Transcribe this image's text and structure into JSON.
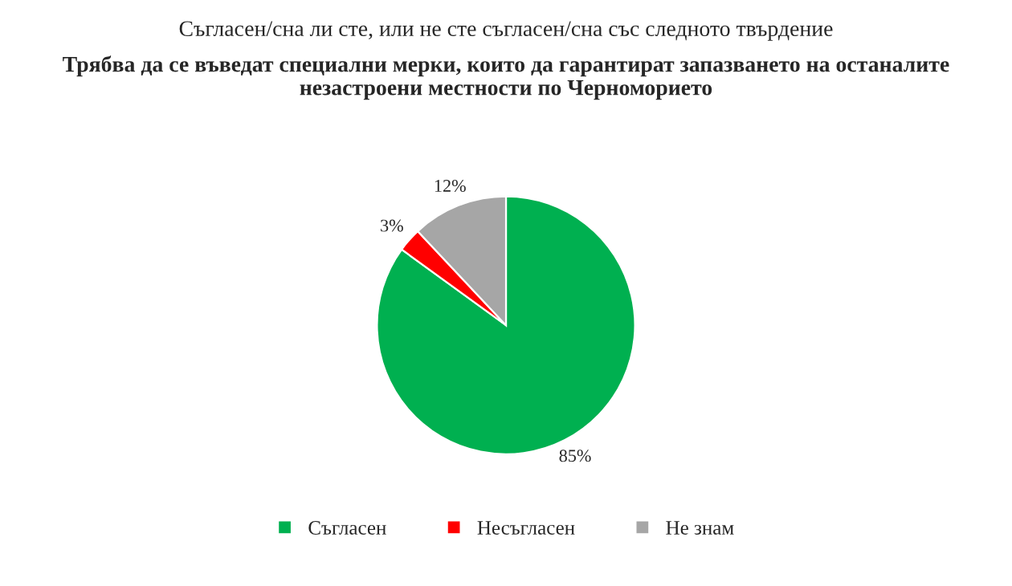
{
  "chart_data": {
    "type": "pie",
    "title": "Съгласен/сна ли сте, или не сте съгласен/сна със следното твърдение",
    "subtitle": "Трябва да се въведат специални мерки, които да гарантират запазването на останалите\nнезастроени местности по Черноморието",
    "categories": [
      "Съгласен",
      "Несъгласен",
      "Не знам"
    ],
    "values": [
      85,
      3,
      12
    ],
    "colors": [
      "#00b050",
      "#ff0000",
      "#a6a6a6"
    ],
    "value_labels": [
      "85%",
      "3%",
      "12%"
    ],
    "legend": "bottom"
  }
}
